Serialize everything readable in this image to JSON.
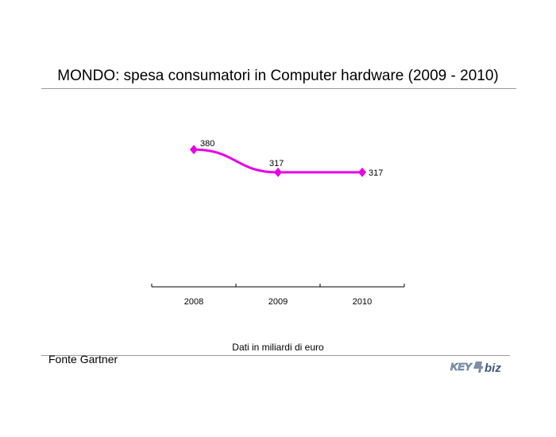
{
  "chart_data": {
    "type": "line",
    "title": "MONDO: spesa consumatori in Computer hardware (2009 - 2010)",
    "categories": [
      "2008",
      "2009",
      "2010"
    ],
    "series": [
      {
        "values": [
          380,
          317,
          317
        ],
        "color": "#e600e6"
      }
    ],
    "data_labels": [
      "380",
      "317",
      "317"
    ],
    "ylim": [
      0,
      750
    ],
    "grid": false,
    "note": "Dati in miliardi di euro",
    "source": "Fonte Gartner"
  },
  "logo": {
    "text_key": "KEY",
    "text_biz": "biz"
  }
}
